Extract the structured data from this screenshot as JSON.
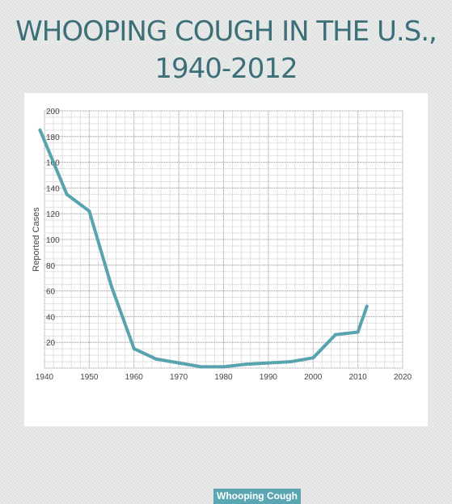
{
  "title": {
    "line1": "WHOOPING COUGH IN THE U.S.,",
    "line2": "1940-2012"
  },
  "colors": {
    "title": "#3d6f79",
    "series": "#57a3ae",
    "grid": "#aaaaaa",
    "minor_grid": "#e2e2e2",
    "axis_text": "#444444"
  },
  "chart_data": {
    "type": "line",
    "title": "WHOOPING COUGH IN THE U.S., 1940-2012",
    "xlabel": "",
    "ylabel": "Reported Cases",
    "xlim": [
      1940,
      2020
    ],
    "ylim": [
      0,
      200
    ],
    "x_ticks": [
      "1940",
      "1950",
      "1960",
      "1970",
      "1980",
      "1990",
      "2000",
      "2010",
      "2020"
    ],
    "y_ticks": [
      "20",
      "40",
      "60",
      "80",
      "100",
      "120",
      "140",
      "160",
      "180",
      "200"
    ],
    "grid": true,
    "legend_position": "bottom",
    "series": [
      {
        "name": "Whooping Cough",
        "x": [
          1939,
          1945,
          1950,
          1955,
          1960,
          1965,
          1970,
          1975,
          1980,
          1985,
          1990,
          1995,
          2000,
          2005,
          2010,
          2012
        ],
        "y": [
          185,
          135,
          122,
          63,
          15,
          7,
          4,
          1,
          1,
          3,
          4,
          5,
          8,
          26,
          28,
          48
        ]
      }
    ]
  }
}
